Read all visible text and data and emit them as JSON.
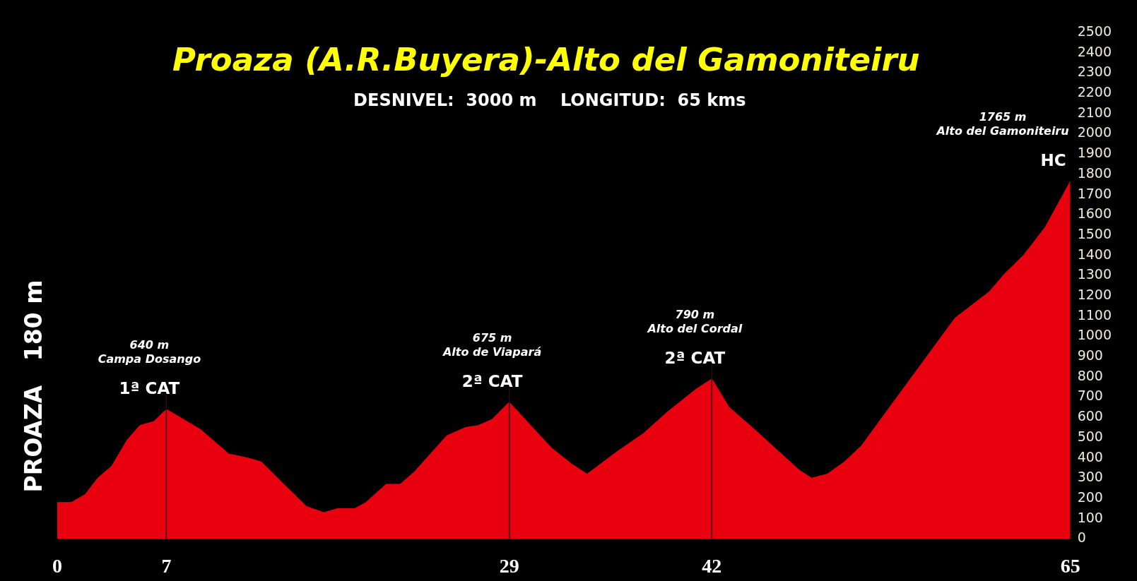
{
  "chart_data": {
    "type": "area",
    "title": "Proaza (A.R.Buyera)-Alto del Gamoniteiru",
    "subtitle": "DESNIVEL:  3000 m    LONGITUD:  65 kms",
    "ylabel": "PROAZA   180 m",
    "x": [
      0,
      0.9,
      1.8,
      2.6,
      3.5,
      4.5,
      5.3,
      6.2,
      7,
      9.2,
      11,
      12.2,
      13.1,
      14.4,
      16,
      17.1,
      18,
      19.1,
      19.8,
      21.1,
      22,
      22.9,
      25,
      26.2,
      27,
      27.9,
      29,
      29.9,
      31.7,
      33,
      34,
      35.9,
      37.6,
      39.2,
      41,
      42,
      43.1,
      44.6,
      47.6,
      48.4,
      49.4,
      50.5,
      51.6,
      53.5,
      55.6,
      57.6,
      59.8,
      60.8,
      62,
      63.4,
      65
    ],
    "values": [
      180,
      180,
      220,
      300,
      360,
      490,
      560,
      580,
      640,
      540,
      420,
      400,
      380,
      280,
      160,
      130,
      150,
      150,
      180,
      270,
      270,
      330,
      510,
      550,
      560,
      590,
      675,
      600,
      450,
      370,
      320,
      430,
      520,
      630,
      740,
      790,
      650,
      550,
      340,
      300,
      320,
      380,
      460,
      660,
      880,
      1090,
      1220,
      1310,
      1400,
      1540,
      1765
    ],
    "color": "#e8000e",
    "xlim": [
      0,
      65
    ],
    "xticks": [
      0,
      7,
      29,
      42,
      65
    ],
    "ylim": [
      0,
      2500
    ],
    "yticks": [
      0,
      100,
      200,
      300,
      400,
      500,
      600,
      700,
      800,
      900,
      1000,
      1100,
      1200,
      1300,
      1400,
      1500,
      1600,
      1700,
      1800,
      1900,
      2000,
      2100,
      2200,
      2300,
      2400,
      2500
    ],
    "ref_lines": [
      {
        "axis": "x",
        "value": 7,
        "color": "#2b0a12"
      },
      {
        "axis": "x",
        "value": 29,
        "color": "#2b0a12"
      },
      {
        "axis": "x",
        "value": 42,
        "color": "#2b0a12"
      }
    ],
    "annotations": [
      "640 m",
      "Campa Dosango",
      {
        "text": "1ª CAT",
        "x": 7,
        "y": 640
      },
      "675 m",
      "Alto de Viapará",
      {
        "text": "2ª CAT",
        "x": 29,
        "y": 675
      },
      "790 m",
      "Alto del Cordal",
      {
        "text": "2ª CAT",
        "x": 42,
        "y": 790
      },
      "1765 m",
      "Alto del Gamoniteiru",
      {
        "text": "HC",
        "x": 65,
        "y": 1765
      }
    ]
  }
}
